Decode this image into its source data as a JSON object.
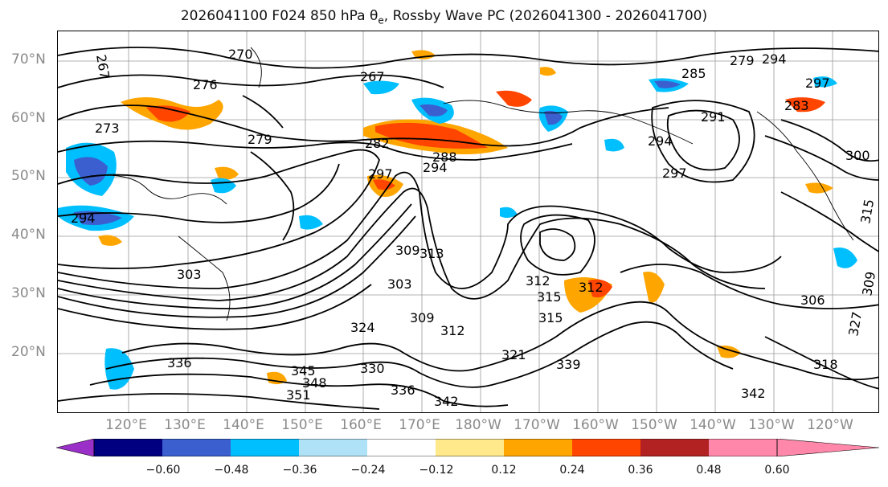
{
  "title": {
    "prefix": "2026041100 F024 850 hPa θ",
    "sub": "e",
    "suffix": ", Rossby Wave PC (2026041300 - 2026041700)"
  },
  "lat_labels": [
    "70°N",
    "60°N",
    "50°N",
    "40°N",
    "30°N",
    "20°N"
  ],
  "lon_labels": [
    "120°E",
    "130°E",
    "140°E",
    "150°E",
    "160°E",
    "170°E",
    "180°W",
    "170°W",
    "160°W",
    "150°W",
    "140°W",
    "130°W",
    "120°W"
  ],
  "contour_labels": [
    "267",
    "270",
    "276",
    "267",
    "273",
    "279",
    "282",
    "288",
    "294",
    "297",
    "294",
    "297",
    "291",
    "285",
    "279",
    "283",
    "300",
    "294",
    "303",
    "309",
    "313",
    "303",
    "306",
    "309",
    "312",
    "312",
    "315",
    "312",
    "315",
    "324",
    "321",
    "339",
    "330",
    "345",
    "348",
    "351",
    "336",
    "342",
    "327",
    "318",
    "342",
    "309",
    "315",
    "336",
    "294",
    "297"
  ],
  "colorbar": {
    "ticks": [
      "−0.60",
      "−0.48",
      "−0.36",
      "−0.24",
      "−0.12",
      "0.12",
      "0.24",
      "0.36",
      "0.48",
      "0.60"
    ],
    "colors": [
      "#9b30c8",
      "#000080",
      "#3b5fcf",
      "#00bfff",
      "#b0e2f7",
      "#ffffff",
      "#ffe98a",
      "#ffa500",
      "#ff4500",
      "#b22222",
      "#ff88aa"
    ]
  }
}
